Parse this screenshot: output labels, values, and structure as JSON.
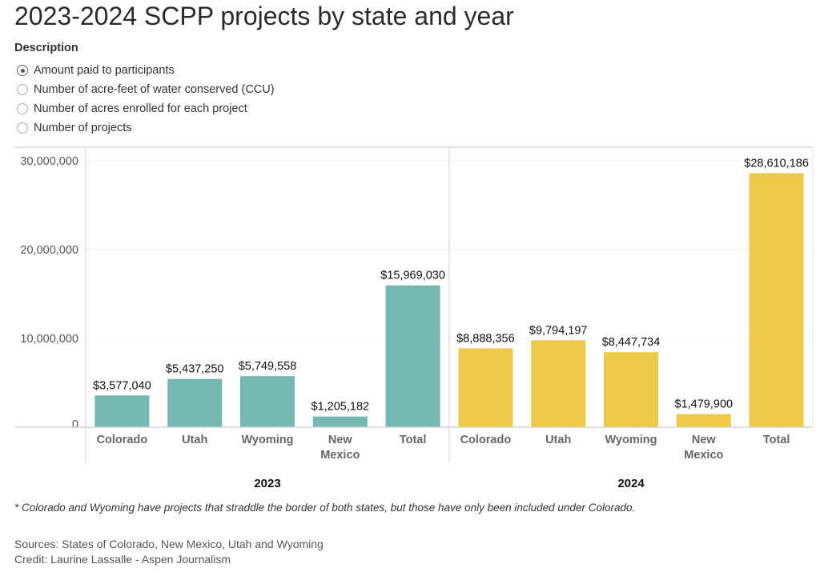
{
  "title": "2023-2024 SCPP projects by state and year",
  "filter": {
    "label": "Description",
    "options": [
      {
        "label": "Amount paid to participants",
        "checked": true
      },
      {
        "label": "Number of acre-feet of water conserved (CCU)",
        "checked": false
      },
      {
        "label": "Number of acres enrolled for each project",
        "checked": false
      },
      {
        "label": "Number of projects",
        "checked": false
      }
    ]
  },
  "chart_data": {
    "type": "bar",
    "title": "2023-2024 SCPP projects by state and year",
    "xlabel": "",
    "ylabel": "",
    "ylim": [
      0,
      31500000
    ],
    "yticks": [
      0,
      10000000,
      20000000,
      30000000
    ],
    "ytick_labels": [
      "0",
      "10,000,000",
      "20,000,000",
      "30,000,000"
    ],
    "grid": true,
    "legend": "none",
    "panels": [
      {
        "name": "2023",
        "color": "#76b7b2",
        "categories": [
          "Colorado",
          "Utah",
          "Wyoming",
          "New Mexico",
          "Total"
        ],
        "values": [
          3577040,
          5437250,
          5749558,
          1205182,
          15969030
        ],
        "labels": [
          "$3,577,040",
          "$5,437,250",
          "$5,749,558",
          "$1,205,182",
          "$15,969,030"
        ]
      },
      {
        "name": "2024",
        "color": "#edc948",
        "categories": [
          "Colorado",
          "Utah",
          "Wyoming",
          "New Mexico",
          "Total"
        ],
        "values": [
          8888356,
          9794197,
          8447734,
          1479900,
          28610186
        ],
        "labels": [
          "$8,888,356",
          "$9,794,197",
          "$8,447,734",
          "$1,479,900",
          "$28,610,186"
        ]
      }
    ]
  },
  "footnote": "* Colorado and Wyoming have projects that straddle the border of both states, but those have only been included under Colorado.",
  "sources": "Sources: States of Colorado, New Mexico, Utah and Wyoming",
  "credit": "Credit: Laurine Lassalle - Aspen Journalism"
}
